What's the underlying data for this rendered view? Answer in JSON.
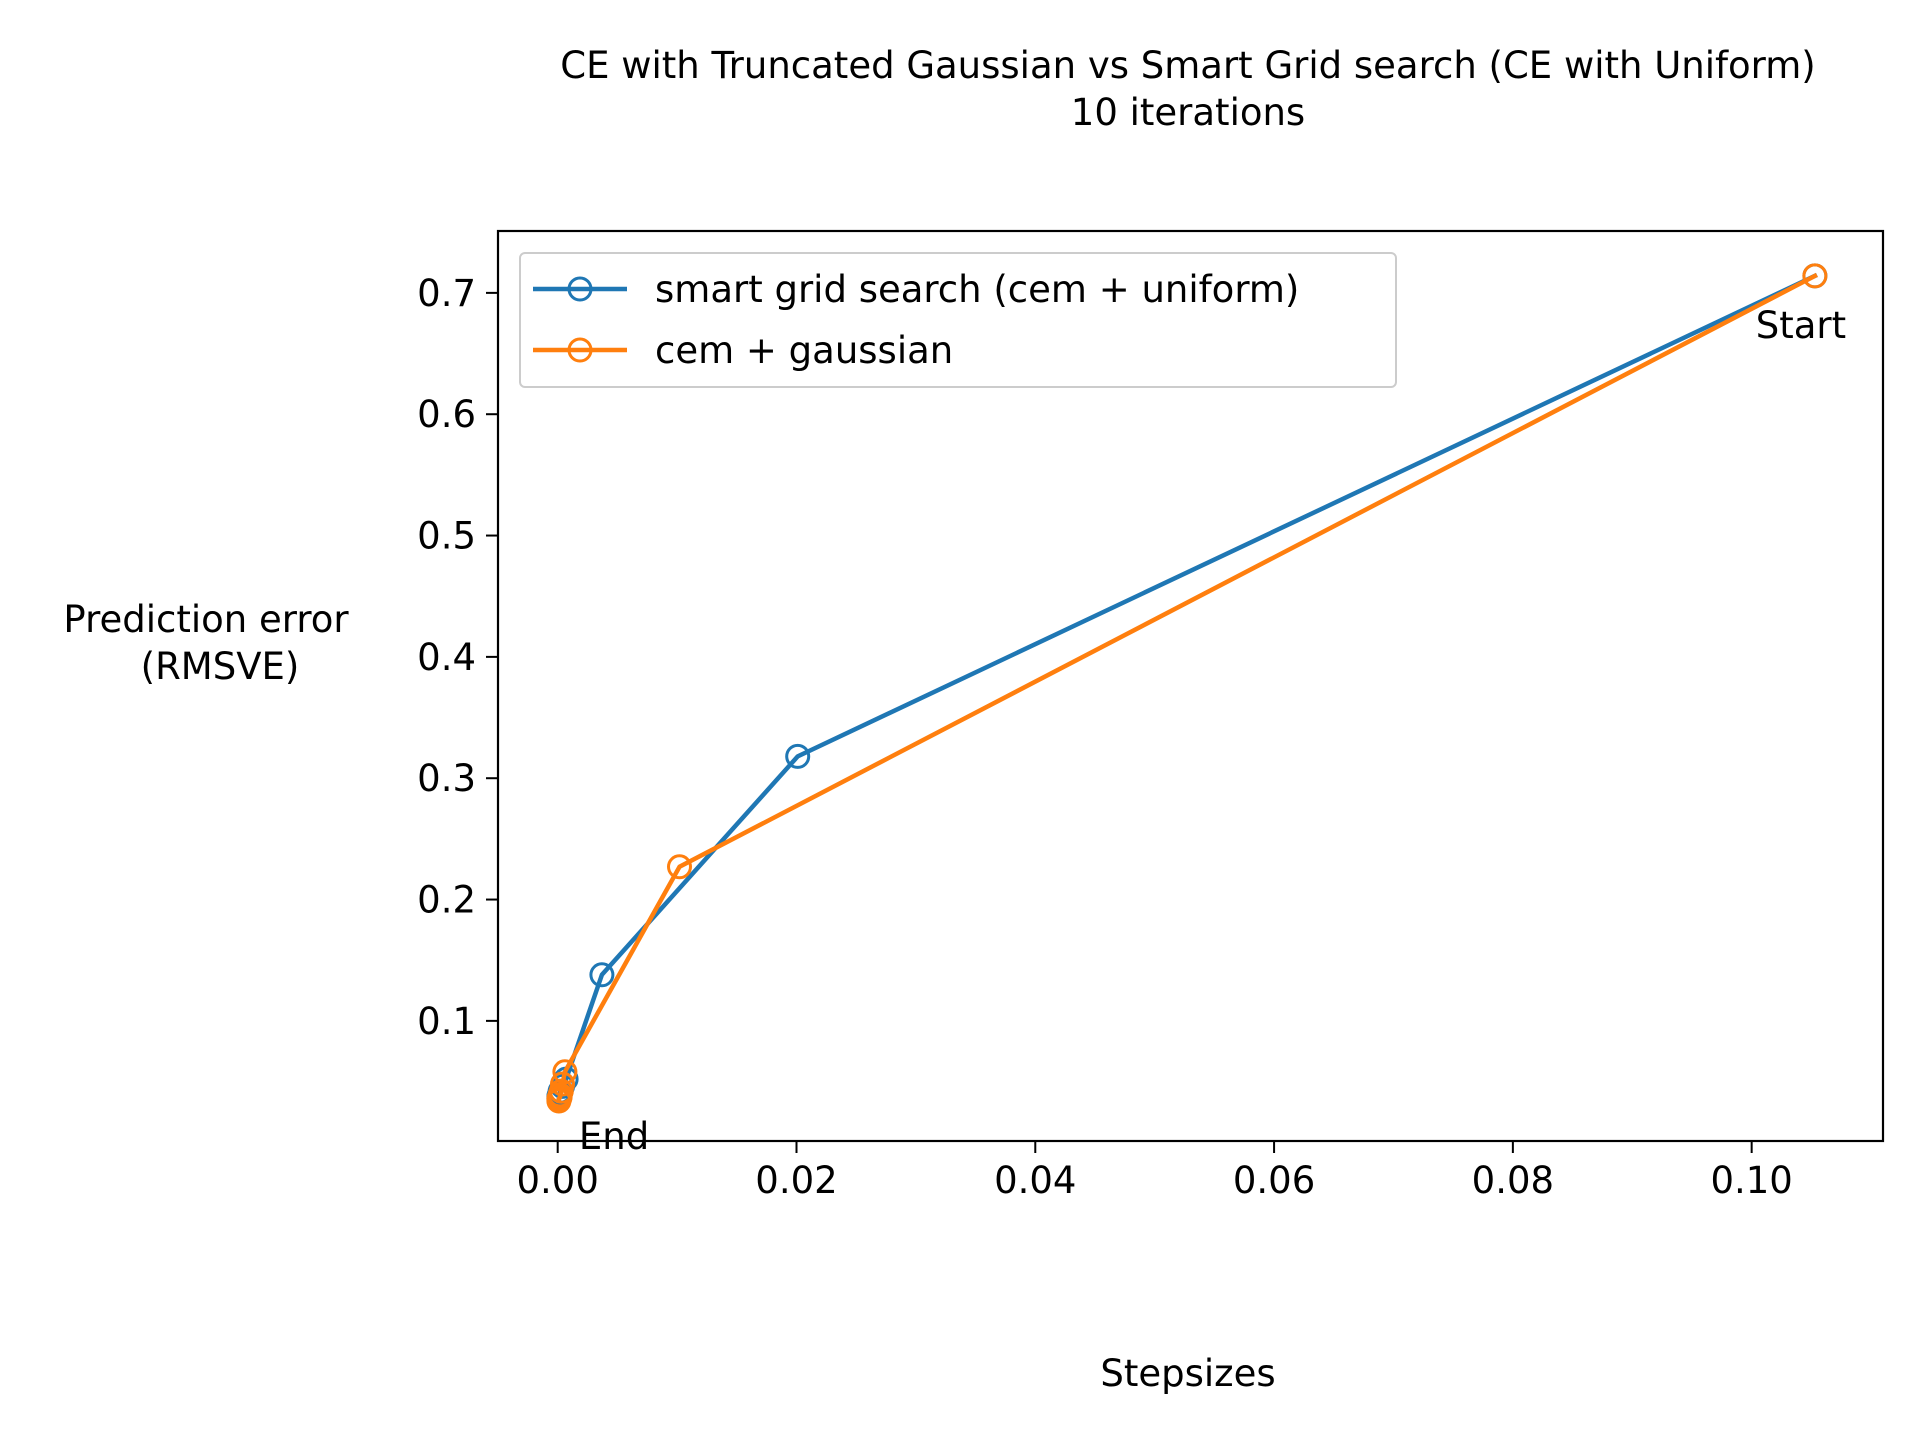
{
  "chart_data": {
    "type": "line",
    "title": "CE with Truncated Gaussian vs Smart Grid search (CE with Uniform)",
    "subtitle": "10 iterations",
    "xlabel": "Stepsizes",
    "ylabel_line1": "Prediction error",
    "ylabel_line2": "(RMSVE)",
    "xlim": [
      -0.005,
      0.111
    ],
    "ylim": [
      0.001,
      0.751
    ],
    "xticks": [
      0.0,
      0.02,
      0.04,
      0.06,
      0.08,
      0.1
    ],
    "xtick_labels": [
      "0.00",
      "0.02",
      "0.04",
      "0.06",
      "0.08",
      "0.10"
    ],
    "yticks": [
      0.1,
      0.2,
      0.3,
      0.4,
      0.5,
      0.6,
      0.7
    ],
    "ytick_labels": [
      "0.1",
      "0.2",
      "0.3",
      "0.4",
      "0.5",
      "0.6",
      "0.7"
    ],
    "grid": false,
    "legend_position": "top-left",
    "series": [
      {
        "name": "smart grid search (cem + uniform)",
        "color": "#1f77b4",
        "x": [
          0.1053,
          0.0201,
          0.0037,
          0.0007,
          0.0004,
          0.0002,
          0.0002,
          0.0001,
          0.0001,
          0.0001
        ],
        "y": [
          0.714,
          0.318,
          0.138,
          0.052,
          0.046,
          0.042,
          0.04,
          0.038,
          0.037,
          0.036
        ]
      },
      {
        "name": "cem + gaussian",
        "color": "#ff7f0e",
        "x": [
          0.1053,
          0.0102,
          0.0006,
          0.0004,
          0.0003,
          0.0002,
          0.0002,
          0.0001,
          0.0001,
          0.0001
        ],
        "y": [
          0.714,
          0.227,
          0.058,
          0.048,
          0.042,
          0.039,
          0.037,
          0.036,
          0.035,
          0.034
        ]
      }
    ],
    "annotations": [
      {
        "text": "Start",
        "x": 0.1053,
        "y": 0.714,
        "anchor": "below"
      },
      {
        "text": "End",
        "x": 0.0001,
        "y": 0.034,
        "anchor": "below-right"
      }
    ]
  }
}
